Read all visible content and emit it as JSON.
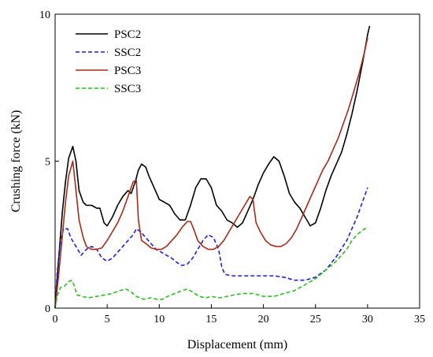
{
  "chart_data": {
    "type": "line",
    "xlabel": "Displacement (mm)",
    "ylabel": "Crushing force (kN)",
    "xlim": [
      0,
      35
    ],
    "ylim": [
      0,
      10
    ],
    "x_ticks": [
      0,
      5,
      10,
      15,
      20,
      25,
      30,
      35
    ],
    "y_ticks": [
      0,
      5,
      10
    ],
    "x_tick_labels": [
      "0",
      "5",
      "10",
      "15",
      "20",
      "25",
      "30",
      "35"
    ],
    "y_tick_labels": [
      "0",
      "5",
      "10"
    ],
    "grid": false,
    "legend_position": "top-left",
    "series": [
      {
        "name": "PSC2",
        "color": "#000000",
        "dash": "solid",
        "points": [
          [
            0,
            0
          ],
          [
            0.3,
            1.5
          ],
          [
            0.7,
            3.3
          ],
          [
            1.0,
            4.3
          ],
          [
            1.3,
            5.1
          ],
          [
            1.7,
            5.5
          ],
          [
            2.0,
            5.0
          ],
          [
            2.3,
            4.0
          ],
          [
            2.7,
            3.6
          ],
          [
            3.0,
            3.5
          ],
          [
            3.5,
            3.5
          ],
          [
            4.0,
            3.4
          ],
          [
            4.3,
            3.4
          ],
          [
            4.7,
            2.9
          ],
          [
            5.0,
            2.8
          ],
          [
            5.5,
            3.1
          ],
          [
            6.0,
            3.5
          ],
          [
            6.5,
            3.8
          ],
          [
            7.0,
            4.0
          ],
          [
            7.3,
            3.9
          ],
          [
            7.7,
            4.3
          ],
          [
            8.0,
            4.7
          ],
          [
            8.3,
            4.9
          ],
          [
            8.7,
            4.8
          ],
          [
            9.0,
            4.5
          ],
          [
            9.5,
            4.1
          ],
          [
            10.0,
            3.7
          ],
          [
            10.5,
            3.6
          ],
          [
            11.0,
            3.5
          ],
          [
            11.5,
            3.2
          ],
          [
            12.0,
            3.0
          ],
          [
            12.5,
            3.0
          ],
          [
            13.0,
            3.5
          ],
          [
            13.5,
            4.1
          ],
          [
            14.0,
            4.4
          ],
          [
            14.5,
            4.4
          ],
          [
            15.0,
            4.1
          ],
          [
            15.5,
            3.5
          ],
          [
            16.0,
            3.3
          ],
          [
            16.5,
            3.0
          ],
          [
            17.0,
            2.9
          ],
          [
            17.5,
            2.75
          ],
          [
            18.0,
            2.9
          ],
          [
            18.5,
            3.3
          ],
          [
            19.0,
            3.7
          ],
          [
            19.5,
            4.2
          ],
          [
            20.0,
            4.6
          ],
          [
            20.5,
            4.9
          ],
          [
            21.0,
            5.15
          ],
          [
            21.5,
            5.0
          ],
          [
            22.0,
            4.5
          ],
          [
            22.5,
            3.9
          ],
          [
            23.0,
            3.6
          ],
          [
            23.5,
            3.4
          ],
          [
            24.0,
            3.1
          ],
          [
            24.5,
            2.8
          ],
          [
            25.0,
            2.9
          ],
          [
            25.5,
            3.4
          ],
          [
            26.0,
            4.0
          ],
          [
            26.5,
            4.5
          ],
          [
            27.0,
            4.9
          ],
          [
            27.5,
            5.3
          ],
          [
            28.0,
            5.9
          ],
          [
            28.5,
            6.6
          ],
          [
            29.0,
            7.4
          ],
          [
            29.5,
            8.3
          ],
          [
            30.0,
            9.3
          ],
          [
            30.2,
            9.6
          ]
        ]
      },
      {
        "name": "SSC2",
        "color": "#1f1fd6",
        "dash": "dashed",
        "points": [
          [
            0,
            0
          ],
          [
            0.2,
            1.2
          ],
          [
            0.5,
            2.2
          ],
          [
            0.8,
            2.7
          ],
          [
            1.2,
            2.7
          ],
          [
            1.5,
            2.4
          ],
          [
            2.0,
            2.1
          ],
          [
            2.5,
            1.8
          ],
          [
            3.0,
            2.0
          ],
          [
            3.5,
            2.1
          ],
          [
            4.0,
            2.0
          ],
          [
            4.5,
            1.7
          ],
          [
            5.0,
            1.6
          ],
          [
            5.5,
            1.7
          ],
          [
            6.0,
            1.9
          ],
          [
            6.5,
            2.1
          ],
          [
            7.0,
            2.3
          ],
          [
            7.5,
            2.5
          ],
          [
            7.8,
            2.7
          ],
          [
            8.2,
            2.6
          ],
          [
            8.7,
            2.4
          ],
          [
            9.2,
            2.2
          ],
          [
            9.7,
            2.0
          ],
          [
            10.2,
            1.9
          ],
          [
            10.7,
            1.8
          ],
          [
            11.2,
            1.7
          ],
          [
            11.7,
            1.55
          ],
          [
            12.2,
            1.45
          ],
          [
            12.7,
            1.5
          ],
          [
            13.2,
            1.7
          ],
          [
            13.7,
            2.0
          ],
          [
            14.2,
            2.3
          ],
          [
            14.7,
            2.5
          ],
          [
            15.2,
            2.4
          ],
          [
            15.7,
            2.0
          ],
          [
            16.0,
            1.4
          ],
          [
            16.3,
            1.15
          ],
          [
            17.0,
            1.1
          ],
          [
            18.0,
            1.1
          ],
          [
            19.0,
            1.1
          ],
          [
            20.0,
            1.1
          ],
          [
            21.0,
            1.1
          ],
          [
            22.0,
            1.05
          ],
          [
            22.5,
            1.0
          ],
          [
            23.0,
            0.95
          ],
          [
            24.0,
            0.95
          ],
          [
            25.0,
            1.05
          ],
          [
            26.0,
            1.3
          ],
          [
            27.0,
            1.75
          ],
          [
            28.0,
            2.3
          ],
          [
            28.5,
            2.7
          ],
          [
            29.0,
            3.1
          ],
          [
            29.5,
            3.6
          ],
          [
            30.0,
            4.1
          ]
        ]
      },
      {
        "name": "PSC3",
        "color": "#a82a17",
        "dash": "solid",
        "points": [
          [
            0,
            0
          ],
          [
            0.3,
            1.0
          ],
          [
            0.6,
            2.1
          ],
          [
            1.0,
            3.6
          ],
          [
            1.3,
            4.5
          ],
          [
            1.7,
            5.0
          ],
          [
            2.0,
            4.0
          ],
          [
            2.3,
            3.0
          ],
          [
            2.7,
            2.4
          ],
          [
            3.0,
            2.1
          ],
          [
            3.5,
            2.0
          ],
          [
            4.0,
            2.0
          ],
          [
            4.5,
            2.05
          ],
          [
            5.0,
            2.3
          ],
          [
            5.5,
            2.6
          ],
          [
            6.0,
            2.9
          ],
          [
            6.5,
            3.3
          ],
          [
            7.0,
            3.8
          ],
          [
            7.5,
            4.3
          ],
          [
            7.8,
            4.35
          ],
          [
            8.0,
            3.0
          ],
          [
            8.3,
            2.3
          ],
          [
            8.7,
            2.2
          ],
          [
            9.2,
            2.05
          ],
          [
            9.7,
            2.0
          ],
          [
            10.2,
            2.0
          ],
          [
            10.7,
            2.1
          ],
          [
            11.2,
            2.3
          ],
          [
            11.7,
            2.5
          ],
          [
            12.2,
            2.75
          ],
          [
            12.7,
            2.95
          ],
          [
            13.0,
            2.95
          ],
          [
            13.3,
            2.7
          ],
          [
            13.7,
            2.3
          ],
          [
            14.2,
            2.1
          ],
          [
            14.7,
            2.0
          ],
          [
            15.2,
            2.0
          ],
          [
            15.7,
            2.1
          ],
          [
            16.2,
            2.3
          ],
          [
            16.7,
            2.6
          ],
          [
            17.2,
            2.9
          ],
          [
            17.7,
            3.2
          ],
          [
            18.2,
            3.5
          ],
          [
            18.7,
            3.8
          ],
          [
            19.0,
            3.7
          ],
          [
            19.3,
            2.9
          ],
          [
            19.7,
            2.6
          ],
          [
            20.2,
            2.3
          ],
          [
            20.7,
            2.15
          ],
          [
            21.2,
            2.1
          ],
          [
            21.7,
            2.1
          ],
          [
            22.2,
            2.2
          ],
          [
            22.7,
            2.4
          ],
          [
            23.2,
            2.7
          ],
          [
            23.7,
            3.1
          ],
          [
            24.2,
            3.5
          ],
          [
            24.7,
            3.9
          ],
          [
            25.2,
            4.3
          ],
          [
            25.7,
            4.7
          ],
          [
            26.2,
            5.0
          ],
          [
            26.7,
            5.4
          ],
          [
            27.2,
            5.8
          ],
          [
            27.7,
            6.3
          ],
          [
            28.2,
            6.8
          ],
          [
            28.7,
            7.4
          ],
          [
            29.2,
            8.0
          ],
          [
            29.7,
            8.7
          ],
          [
            30.0,
            9.2
          ]
        ]
      },
      {
        "name": "SSC3",
        "color": "#2cbd1e",
        "dash": "dashed",
        "points": [
          [
            0,
            0
          ],
          [
            0.2,
            0.4
          ],
          [
            0.5,
            0.7
          ],
          [
            0.9,
            0.75
          ],
          [
            1.3,
            0.9
          ],
          [
            1.6,
            0.95
          ],
          [
            1.8,
            0.8
          ],
          [
            2.1,
            0.45
          ],
          [
            2.6,
            0.4
          ],
          [
            3.2,
            0.35
          ],
          [
            4.0,
            0.4
          ],
          [
            4.8,
            0.45
          ],
          [
            5.5,
            0.5
          ],
          [
            6.2,
            0.6
          ],
          [
            6.8,
            0.65
          ],
          [
            7.3,
            0.55
          ],
          [
            7.8,
            0.4
          ],
          [
            8.5,
            0.3
          ],
          [
            9.2,
            0.35
          ],
          [
            9.8,
            0.3
          ],
          [
            10.3,
            0.3
          ],
          [
            10.8,
            0.4
          ],
          [
            11.5,
            0.5
          ],
          [
            12.2,
            0.6
          ],
          [
            12.7,
            0.65
          ],
          [
            13.2,
            0.55
          ],
          [
            13.8,
            0.4
          ],
          [
            14.5,
            0.35
          ],
          [
            15.0,
            0.4
          ],
          [
            15.8,
            0.35
          ],
          [
            16.5,
            0.4
          ],
          [
            17.2,
            0.45
          ],
          [
            18.0,
            0.5
          ],
          [
            19.0,
            0.5
          ],
          [
            19.5,
            0.45
          ],
          [
            20.0,
            0.4
          ],
          [
            21.0,
            0.4
          ],
          [
            22.0,
            0.5
          ],
          [
            23.0,
            0.6
          ],
          [
            24.0,
            0.8
          ],
          [
            25.0,
            1.0
          ],
          [
            26.0,
            1.3
          ],
          [
            27.0,
            1.6
          ],
          [
            28.0,
            2.0
          ],
          [
            28.5,
            2.3
          ],
          [
            29.0,
            2.5
          ],
          [
            29.5,
            2.65
          ],
          [
            30.0,
            2.75
          ]
        ]
      }
    ]
  }
}
